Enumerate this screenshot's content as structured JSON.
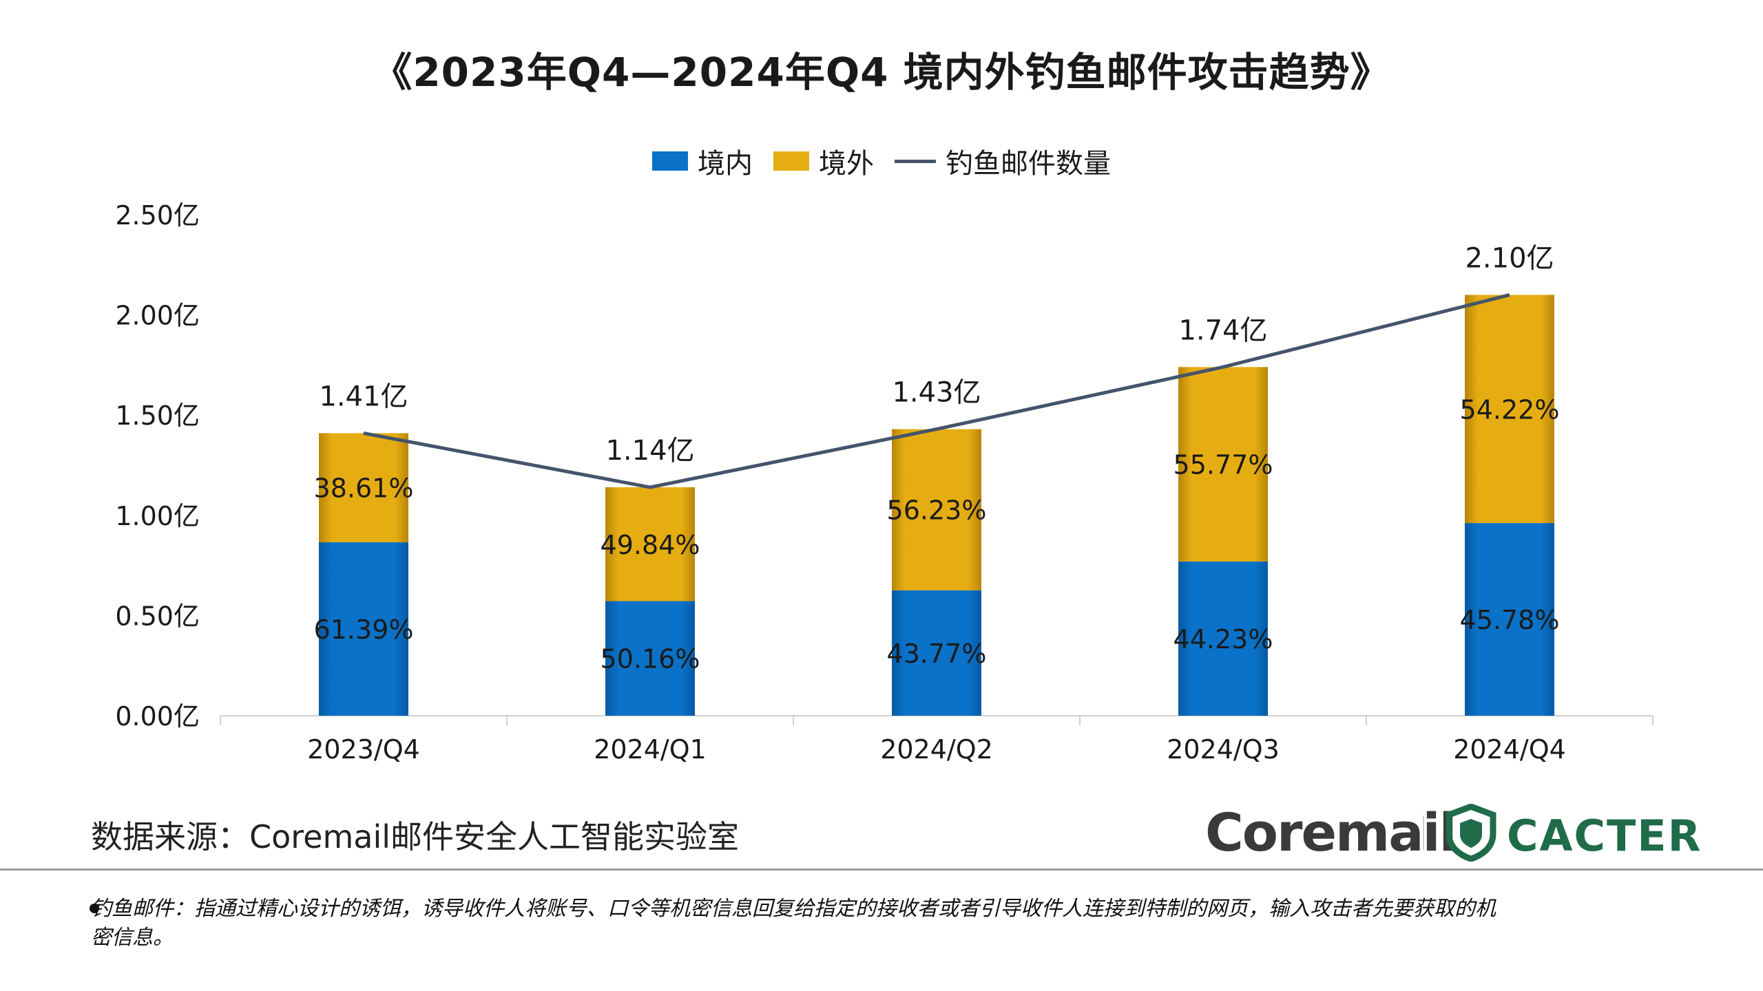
{
  "title": "《2023年Q4—2024年Q4  境内外钓鱼邮件攻击趋势》",
  "legend": {
    "domestic": "境内",
    "foreign": "境外",
    "total": "钓鱼邮件数量"
  },
  "colors": {
    "domestic": "#0a72c8",
    "foreign": "#e6ad12",
    "line": "#44546a"
  },
  "chart_data": {
    "type": "bar",
    "stacked": true,
    "categories": [
      "2023/Q4",
      "2024/Q1",
      "2024/Q2",
      "2024/Q3",
      "2024/Q4"
    ],
    "series": [
      {
        "name": "境内",
        "share_labels": [
          "61.39%",
          "50.16%",
          "43.77%",
          "44.23%",
          "45.78%"
        ],
        "share": [
          61.39,
          50.16,
          43.77,
          44.23,
          45.78
        ]
      },
      {
        "name": "境外",
        "share_labels": [
          "38.61%",
          "49.84%",
          "56.23%",
          "55.77%",
          "54.22%"
        ],
        "share": [
          38.61,
          49.84,
          56.23,
          55.77,
          54.22
        ]
      }
    ],
    "line": {
      "name": "钓鱼邮件数量",
      "values": [
        1.41,
        1.14,
        1.43,
        1.74,
        2.1
      ],
      "labels": [
        "1.41亿",
        "1.14亿",
        "1.43亿",
        "1.74亿",
        "2.10亿"
      ]
    },
    "y_ticks": [
      "0.00亿",
      "0.50亿",
      "1.00亿",
      "1.50亿",
      "2.00亿",
      "2.50亿"
    ],
    "ylim": [
      0,
      2.5
    ],
    "grid": false,
    "legend_position": "top"
  },
  "source": "数据来源：Coremail邮件安全人工智能实验室",
  "logos": {
    "coremail": "Coremail",
    "cacter": "CACTER"
  },
  "footnote": "钓鱼邮件：指通过精心设计的诱饵，诱导收件人将账号、口令等机密信息回复给指定的接收者或者引导收件人连接到特制的网页，输入攻击者先要获取的机密信息。"
}
